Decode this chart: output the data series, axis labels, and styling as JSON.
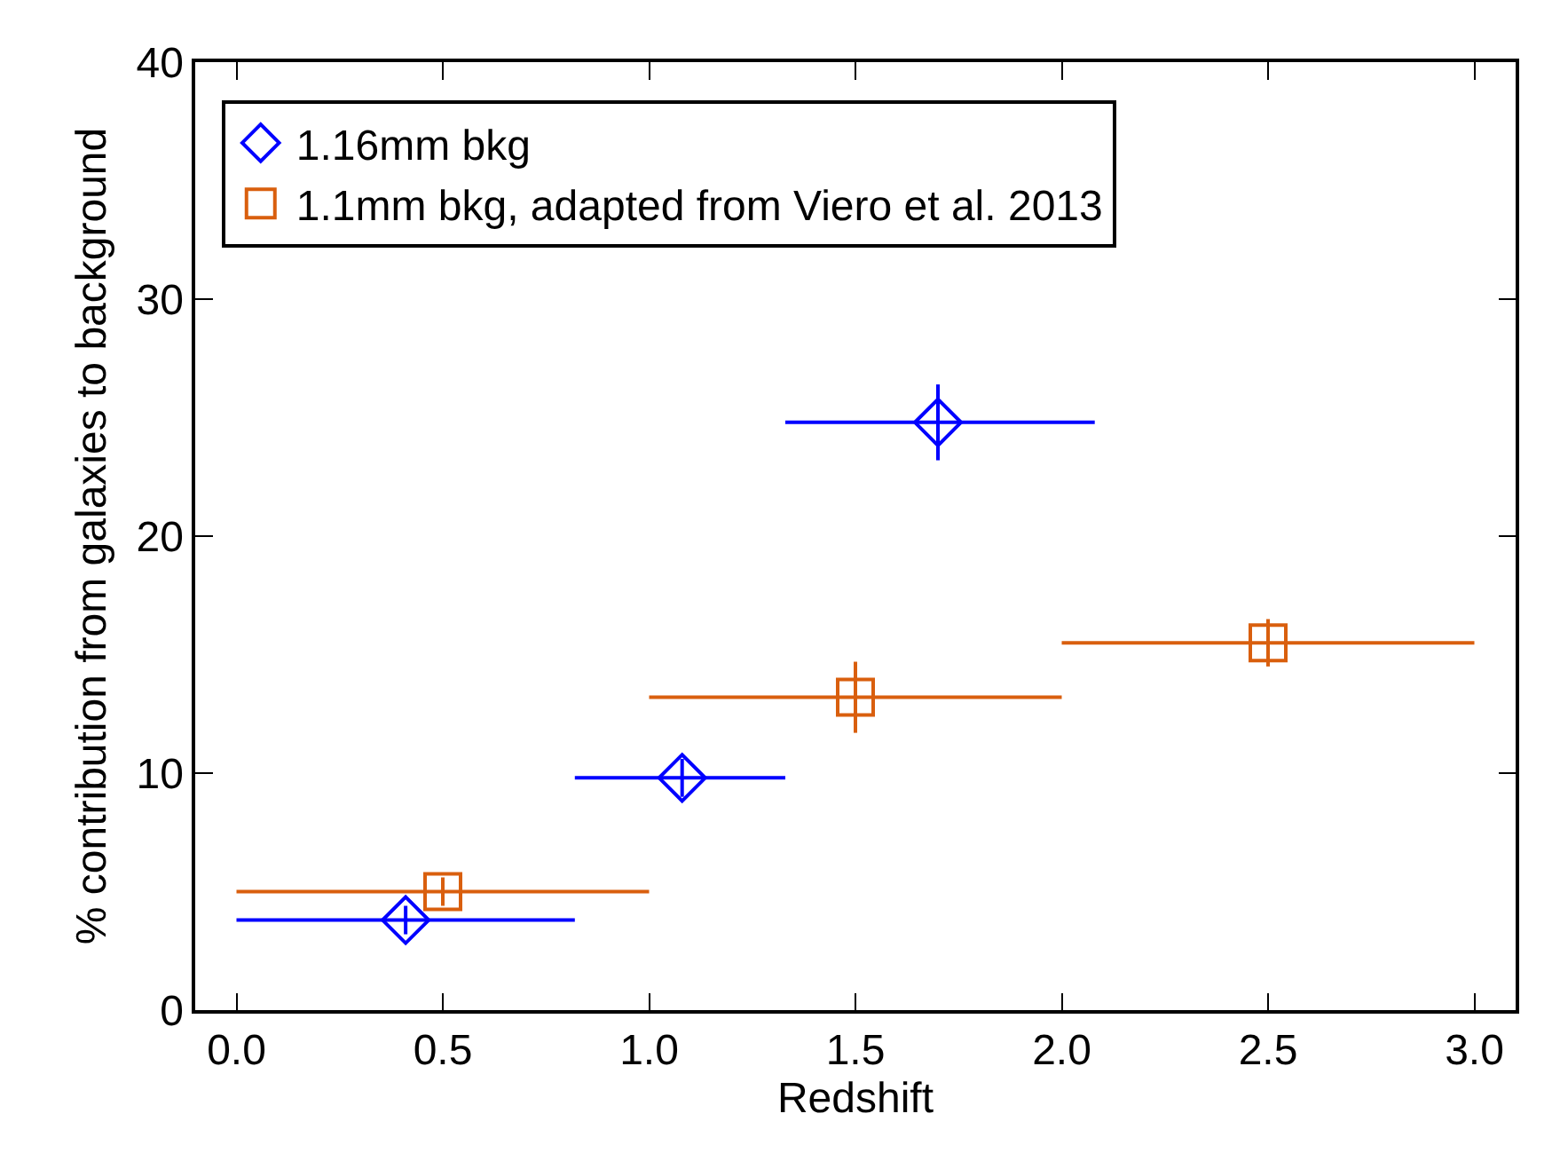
{
  "chart_data": {
    "type": "scatter",
    "xlabel": "Redshift",
    "ylabel": "% contribution from galaxies to background",
    "xlim": [
      -0.1,
      3.1
    ],
    "ylim": [
      0,
      40
    ],
    "xticks": [
      {
        "value": 0,
        "label": "0.0"
      },
      {
        "value": 0.5,
        "label": "0.5"
      },
      {
        "value": 1,
        "label": "1.0"
      },
      {
        "value": 1.5,
        "label": "1.5"
      },
      {
        "value": 2,
        "label": "2.0"
      },
      {
        "value": 2.5,
        "label": "2.5"
      },
      {
        "value": 3,
        "label": "3.0"
      }
    ],
    "yticks": [
      0,
      10,
      20,
      30,
      40
    ],
    "legend": "top left",
    "series": [
      {
        "name": "1.16mm bkg",
        "color": "#0000ff",
        "marker": "diamond",
        "x": [
          0.41,
          1.08,
          1.7
        ],
        "values": [
          3.8,
          9.8,
          24.8
        ],
        "errors": [
          0.6,
          0.8,
          1.6
        ],
        "xerrors": [
          [
            0.0,
            0.82
          ],
          [
            0.82,
            1.33
          ],
          [
            1.33,
            2.08
          ]
        ]
      },
      {
        "name": "1.1mm bkg, adapted from Viero et al. 2013",
        "color": "#d95f0e",
        "marker": "square",
        "x": [
          0.5,
          1.5,
          2.5
        ],
        "values": [
          5.0,
          13.2,
          15.5
        ],
        "errors": [
          0.6,
          1.5,
          1.0
        ],
        "xerrors": [
          [
            0.0,
            1.0
          ],
          [
            1.0,
            2.0
          ],
          [
            2.0,
            3.0
          ]
        ]
      }
    ]
  }
}
